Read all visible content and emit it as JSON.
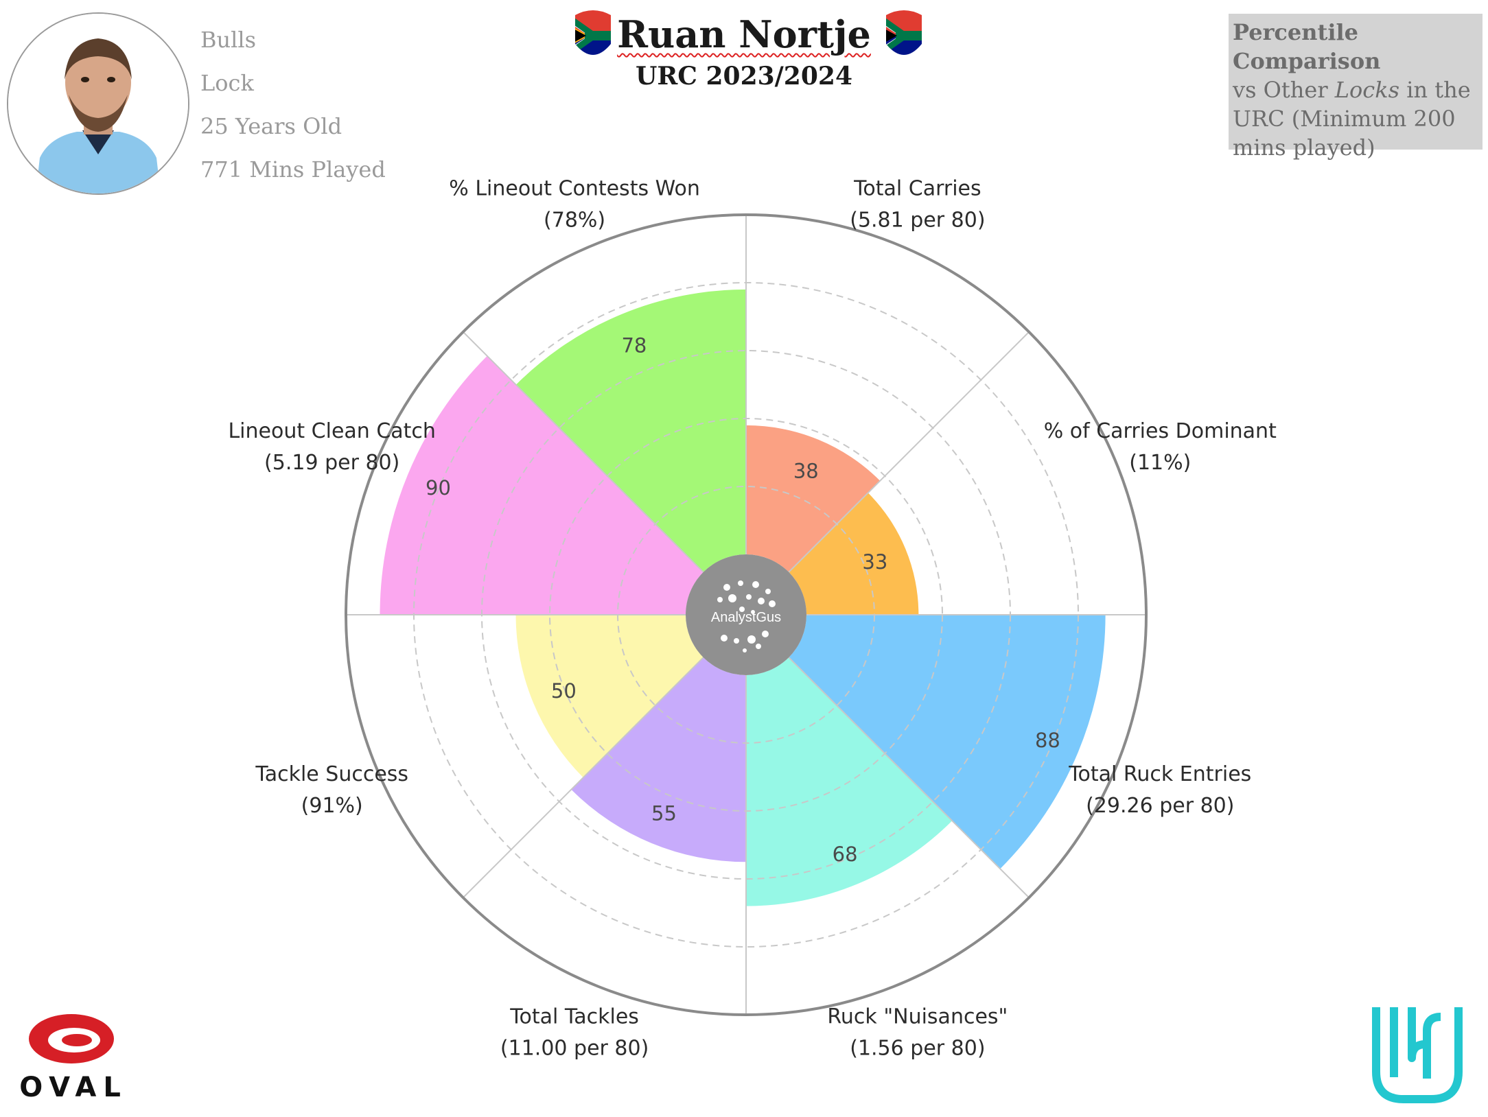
{
  "player": {
    "name": "Ruan Nortje",
    "season": "URC 2023/2024",
    "team": "Bulls",
    "position": "Lock",
    "age": "25 Years Old",
    "minutes": "771 Mins Played"
  },
  "note": {
    "heading": "Percentile Comparison",
    "line_pre": "vs Other ",
    "line_em": "Locks",
    "line_post": " in the URC (Minimum 200 mins played)"
  },
  "center_logo": "AnalystGus",
  "logos": {
    "left": "OVAL",
    "right": "URC"
  },
  "chart_data": {
    "type": "polar-bar",
    "title": "Ruan Nortje",
    "subtitle": "URC 2023/2024",
    "rlim": [
      0,
      100
    ],
    "grid": true,
    "grid_rings": [
      20,
      40,
      60,
      80
    ],
    "categories": [
      {
        "label": "Total Carries",
        "value_label": "(5.81 per 80)",
        "percentile": 38,
        "color": "#fba183"
      },
      {
        "label": "% of Carries Dominant",
        "value_label": "(11%)",
        "percentile": 33,
        "color": "#fdbd4f"
      },
      {
        "label": "Total Ruck Entries",
        "value_label": "(29.26 per 80)",
        "percentile": 88,
        "color": "#7ac9fc"
      },
      {
        "label": "Ruck \"Nuisances\"",
        "value_label": "(1.56 per 80)",
        "percentile": 68,
        "color": "#96f8e6"
      },
      {
        "label": "Total Tackles",
        "value_label": "(11.00 per 80)",
        "percentile": 55,
        "color": "#c7abfb"
      },
      {
        "label": "Tackle Success",
        "value_label": "(91%)",
        "percentile": 50,
        "color": "#fdf7ad"
      },
      {
        "label": "Lineout Clean Catch",
        "value_label": "(5.19 per 80)",
        "percentile": 90,
        "color": "#fba7ef"
      },
      {
        "label": "% Lineout Contests Won",
        "value_label": "(78%)",
        "percentile": 78,
        "color": "#a4f876"
      }
    ]
  }
}
